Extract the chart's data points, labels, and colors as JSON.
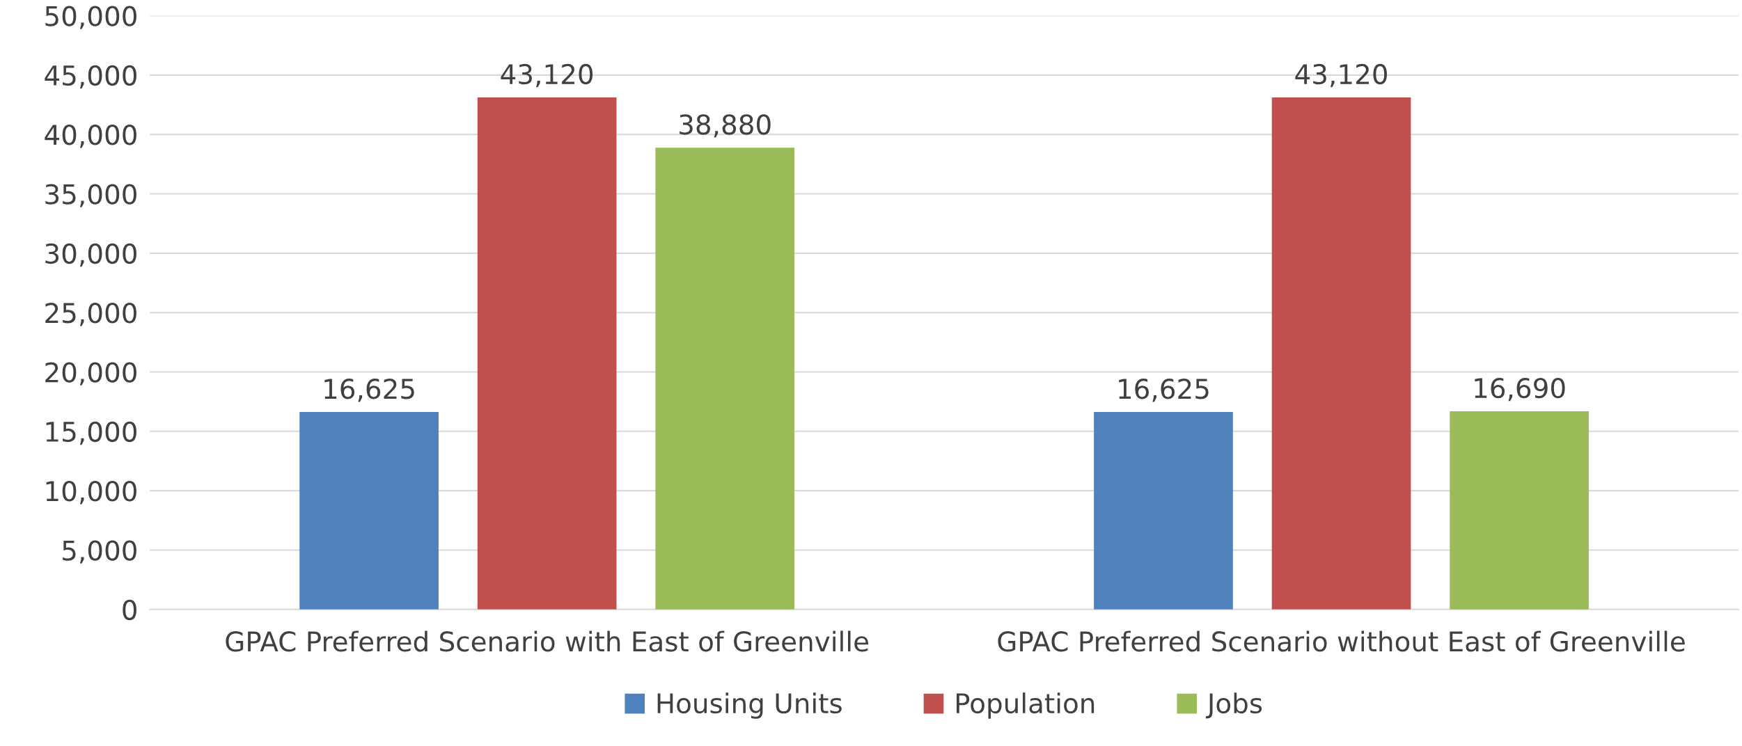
{
  "chart_data": {
    "type": "bar",
    "categories": [
      "GPAC Preferred Scenario with East of Greenville",
      "GPAC Preferred Scenario without East of Greenville"
    ],
    "series": [
      {
        "name": "Housing Units",
        "color": "#4f81bd",
        "values": [
          16625,
          16625
        ],
        "value_labels": [
          "16,625",
          "16,625"
        ]
      },
      {
        "name": "Population",
        "color": "#c0504d",
        "values": [
          43120,
          43120
        ],
        "value_labels": [
          "43,120",
          "43,120"
        ]
      },
      {
        "name": "Jobs",
        "color": "#9bbb59",
        "values": [
          38880,
          16690
        ],
        "value_labels": [
          "38,880",
          "16,690"
        ]
      }
    ],
    "ylim": [
      0,
      50000
    ],
    "yticks": [
      {
        "value": 0,
        "label": "0"
      },
      {
        "value": 5000,
        "label": "5,000"
      },
      {
        "value": 10000,
        "label": "10,000"
      },
      {
        "value": 15000,
        "label": "15,000"
      },
      {
        "value": 20000,
        "label": "20,000"
      },
      {
        "value": 25000,
        "label": "25,000"
      },
      {
        "value": 30000,
        "label": "30,000"
      },
      {
        "value": 35000,
        "label": "35,000"
      },
      {
        "value": 40000,
        "label": "40,000"
      },
      {
        "value": 45000,
        "label": "45,000"
      },
      {
        "value": 50000,
        "label": "50,000"
      }
    ],
    "grid": "y",
    "legend": "bottom"
  }
}
